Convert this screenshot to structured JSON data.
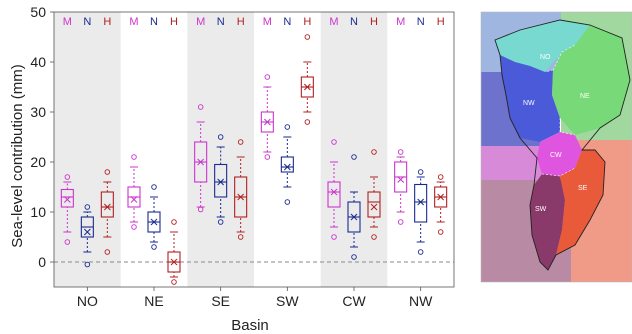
{
  "chart_data": {
    "type": "box",
    "xlabel": "Basin",
    "ylabel": "Sea-level contribution (mm)",
    "ylim": [
      -5,
      50
    ],
    "yticks": [
      0,
      10,
      20,
      30,
      40,
      50
    ],
    "reference_line": 0,
    "categories": [
      "NO",
      "NE",
      "SE",
      "SW",
      "CW",
      "NW"
    ],
    "shaded_basins": [
      "NO",
      "SE",
      "CW"
    ],
    "series": [
      {
        "name": "M",
        "color": "#cc33cc",
        "boxes": [
          {
            "whisker_low": 6,
            "q1": 11,
            "median": 13,
            "mean": 12.5,
            "q3": 14.5,
            "whisker_high": 16,
            "outliers": [
              4,
              17
            ]
          },
          {
            "whisker_low": 8,
            "q1": 11,
            "median": 13,
            "mean": 12.5,
            "q3": 15,
            "whisker_high": 19,
            "outliers": [
              7,
              21
            ]
          },
          {
            "whisker_low": 11,
            "q1": 16,
            "median": 20,
            "mean": 20,
            "q3": 24,
            "whisker_high": 28,
            "outliers": [
              10.5,
              31
            ]
          },
          {
            "whisker_low": 22,
            "q1": 26,
            "median": 28,
            "mean": 28,
            "q3": 30,
            "whisker_high": 35,
            "outliers": [
              21,
              37
            ]
          },
          {
            "whisker_low": 7,
            "q1": 11,
            "median": 14,
            "mean": 14,
            "q3": 16,
            "whisker_high": 20,
            "outliers": [
              5,
              24
            ]
          },
          {
            "whisker_low": 10,
            "q1": 14,
            "median": 17,
            "mean": 16.5,
            "q3": 20,
            "whisker_high": 21,
            "outliers": [
              8,
              22
            ]
          }
        ]
      },
      {
        "name": "N",
        "color": "#1a2a8f",
        "boxes": [
          {
            "whisker_low": 2,
            "q1": 5,
            "median": 7,
            "mean": 6,
            "q3": 9,
            "whisker_high": 10,
            "outliers": [
              -0.5,
              11
            ]
          },
          {
            "whisker_low": 4,
            "q1": 6,
            "median": 8,
            "mean": 8,
            "q3": 10,
            "whisker_high": 13,
            "outliers": [
              3,
              15
            ]
          },
          {
            "whisker_low": 9,
            "q1": 13,
            "median": 16,
            "mean": 16,
            "q3": 19.5,
            "whisker_high": 23,
            "outliers": [
              8,
              25
            ]
          },
          {
            "whisker_low": 15,
            "q1": 18,
            "median": 19,
            "mean": 19,
            "q3": 21,
            "whisker_high": 25,
            "outliers": [
              12,
              27
            ]
          },
          {
            "whisker_low": 3,
            "q1": 6,
            "median": 9,
            "mean": 9,
            "q3": 12,
            "whisker_high": 14,
            "outliers": [
              1,
              21
            ]
          },
          {
            "whisker_low": 4,
            "q1": 8,
            "median": 12,
            "mean": 12,
            "q3": 15.5,
            "whisker_high": 17,
            "outliers": [
              2,
              18
            ]
          }
        ]
      },
      {
        "name": "H",
        "color": "#b02020",
        "boxes": [
          {
            "whisker_low": 5,
            "q1": 9,
            "median": 11,
            "mean": 11,
            "q3": 14,
            "whisker_high": 16,
            "outliers": [
              2,
              18
            ]
          },
          {
            "whisker_low": -3,
            "q1": -2,
            "median": 0,
            "mean": 0,
            "q3": 2,
            "whisker_high": 6,
            "outliers": [
              -4,
              8
            ]
          },
          {
            "whisker_low": 6,
            "q1": 9,
            "median": 13,
            "mean": 13,
            "q3": 17,
            "whisker_high": 21,
            "outliers": [
              5,
              24
            ]
          },
          {
            "whisker_low": 30,
            "q1": 33,
            "median": 35,
            "mean": 35,
            "q3": 37,
            "whisker_high": 40,
            "outliers": [
              28,
              45
            ]
          },
          {
            "whisker_low": 7,
            "q1": 9,
            "median": 12,
            "mean": 11,
            "q3": 14,
            "whisker_high": 17,
            "outliers": [
              5,
              22
            ]
          },
          {
            "whisker_low": 8,
            "q1": 11,
            "median": 13,
            "mean": 13,
            "q3": 15,
            "whisker_high": 16,
            "outliers": [
              6,
              17
            ]
          }
        ]
      }
    ]
  },
  "map": {
    "regions": [
      {
        "label": "NO",
        "color": "#77d9d0"
      },
      {
        "label": "NE",
        "color": "#77d977"
      },
      {
        "label": "NW",
        "color": "#4a5ad9"
      },
      {
        "label": "CW",
        "color": "#e055e0"
      },
      {
        "label": "SW",
        "color": "#8a3a6a"
      },
      {
        "label": "SE",
        "color": "#e85a3a"
      }
    ],
    "background_colors": {
      "top_left": "#9eb6e0",
      "left_mid": "#6d72cc",
      "left_band": "#d78ad7",
      "bottom_left": "#b98aa3",
      "top_right": "#a0d8a0",
      "bottom_right": "#f09a88"
    }
  }
}
